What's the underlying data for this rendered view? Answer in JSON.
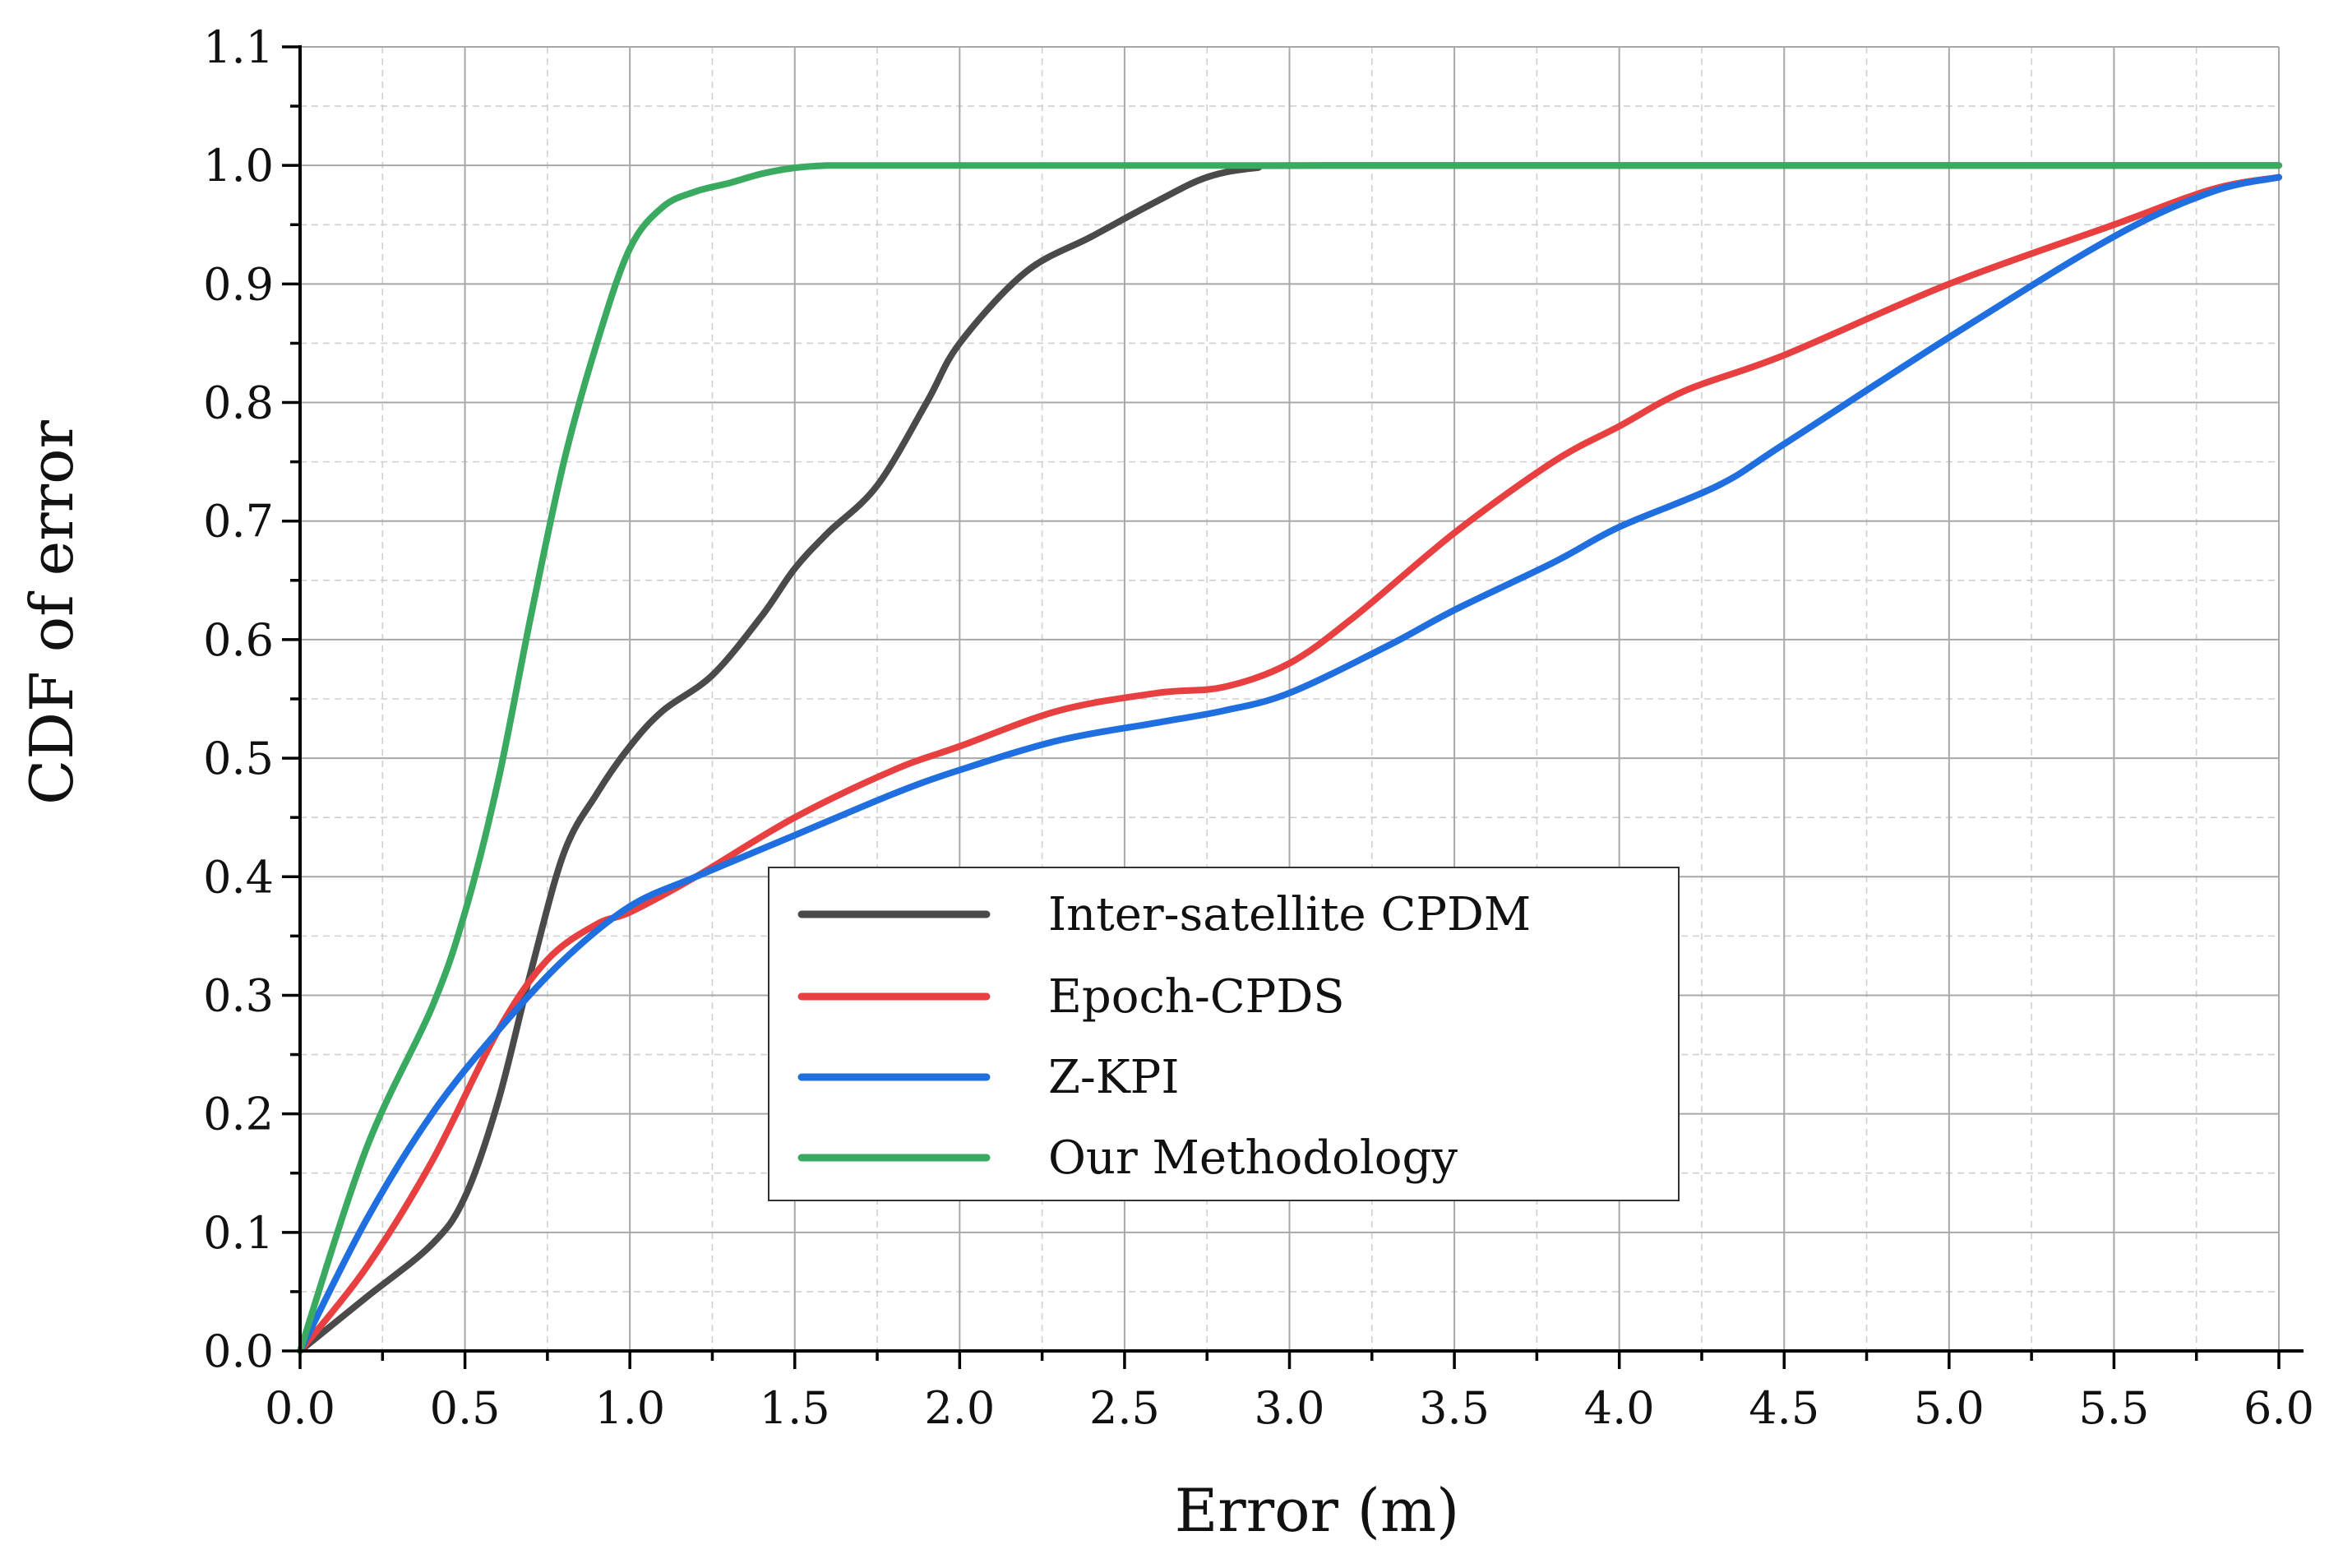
{
  "chart_data": {
    "type": "line",
    "xlabel": "Error (m)",
    "ylabel": "CDF of error",
    "xlim": [
      0,
      6
    ],
    "ylim": [
      0,
      1.1
    ],
    "grid": true,
    "minor_grid": true,
    "legend_position": "center",
    "x_ticks": [
      "0.0",
      "0.5",
      "1.0",
      "1.5",
      "2.0",
      "2.5",
      "3.0",
      "3.5",
      "4.0",
      "4.5",
      "5.0",
      "5.5",
      "6.0"
    ],
    "y_ticks": [
      "0.0",
      "0.1",
      "0.2",
      "0.3",
      "0.4",
      "0.5",
      "0.6",
      "0.7",
      "0.8",
      "0.9",
      "1.0",
      "1.1"
    ],
    "series": [
      {
        "name": "Inter-satellite CPDM",
        "color": "#4a4a4a",
        "x": [
          0,
          0.2,
          0.4,
          0.5,
          0.6,
          0.7,
          0.8,
          0.9,
          1.0,
          1.1,
          1.25,
          1.4,
          1.5,
          1.6,
          1.75,
          1.9,
          2.0,
          2.2,
          2.4,
          2.6,
          2.75,
          2.9,
          3.1,
          6.0
        ],
        "y": [
          0,
          0.045,
          0.09,
          0.13,
          0.21,
          0.32,
          0.42,
          0.47,
          0.51,
          0.54,
          0.57,
          0.62,
          0.66,
          0.69,
          0.73,
          0.8,
          0.85,
          0.91,
          0.94,
          0.97,
          0.99,
          0.998,
          1.0,
          1.0
        ]
      },
      {
        "name": "Epoch-CPDS",
        "color": "#e84040",
        "x": [
          0,
          0.2,
          0.4,
          0.6,
          0.75,
          0.9,
          1.0,
          1.2,
          1.5,
          1.8,
          2.0,
          2.3,
          2.6,
          2.8,
          3.0,
          3.2,
          3.5,
          3.8,
          4.0,
          4.2,
          4.5,
          5.0,
          5.5,
          5.8,
          6.0
        ],
        "y": [
          0,
          0.07,
          0.16,
          0.27,
          0.33,
          0.36,
          0.37,
          0.4,
          0.45,
          0.49,
          0.51,
          0.54,
          0.555,
          0.56,
          0.58,
          0.62,
          0.69,
          0.75,
          0.78,
          0.81,
          0.84,
          0.9,
          0.95,
          0.98,
          0.99
        ]
      },
      {
        "name": "Z-KPI",
        "color": "#1f6fe0",
        "x": [
          0,
          0.2,
          0.4,
          0.6,
          0.8,
          1.0,
          1.2,
          1.5,
          1.8,
          2.0,
          2.3,
          2.6,
          2.8,
          3.0,
          3.3,
          3.5,
          3.8,
          4.0,
          4.3,
          4.5,
          5.0,
          5.5,
          5.8,
          6.0
        ],
        "y": [
          0,
          0.11,
          0.2,
          0.27,
          0.33,
          0.375,
          0.4,
          0.435,
          0.47,
          0.49,
          0.515,
          0.53,
          0.54,
          0.555,
          0.595,
          0.625,
          0.665,
          0.695,
          0.73,
          0.765,
          0.855,
          0.94,
          0.978,
          0.99
        ]
      },
      {
        "name": "Our Methodology",
        "color": "#3aaa60",
        "x": [
          0,
          0.2,
          0.4,
          0.5,
          0.6,
          0.7,
          0.8,
          0.9,
          1.0,
          1.1,
          1.2,
          1.3,
          1.4,
          1.5,
          1.6,
          1.7,
          2.0,
          6.0
        ],
        "y": [
          0,
          0.17,
          0.29,
          0.37,
          0.48,
          0.62,
          0.75,
          0.85,
          0.93,
          0.965,
          0.978,
          0.985,
          0.993,
          0.998,
          1.0,
          1.0,
          1.0,
          1.0
        ]
      }
    ]
  }
}
